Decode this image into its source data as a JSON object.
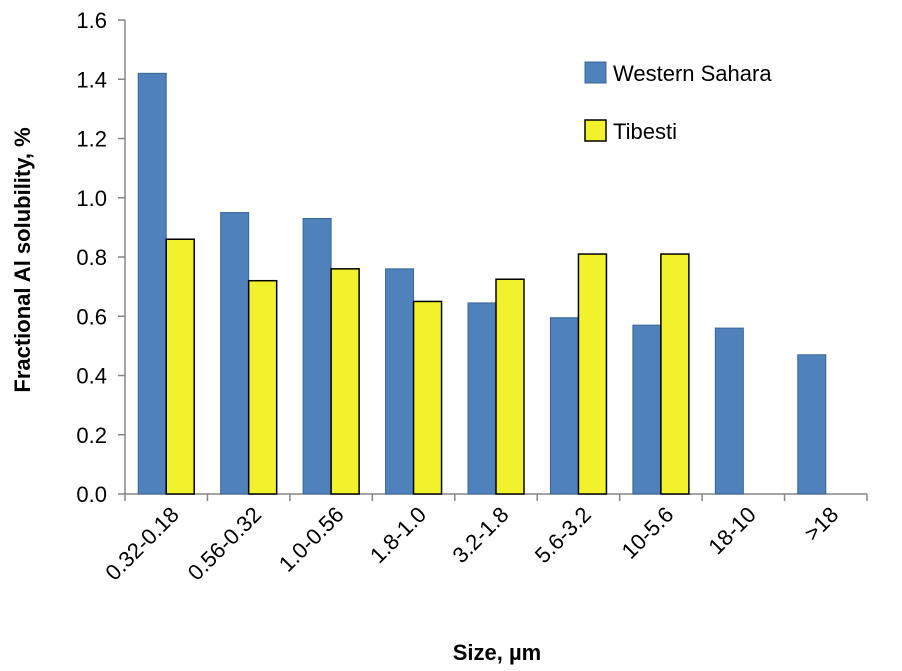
{
  "chart_data": {
    "type": "bar",
    "xlabel": "Size, µm",
    "ylabel": "Fractional Al solubility, %",
    "ylim": [
      0,
      1.6
    ],
    "y_ticks": [
      "0.0",
      "0.2",
      "0.4",
      "0.6",
      "0.8",
      "1.0",
      "1.2",
      "1.4",
      "1.6"
    ],
    "categories": [
      "0.32-0.18",
      "0.56-0.32",
      "1.0-0.56",
      "1.8-1.0",
      "3.2-1.8",
      "5.6-3.2",
      "10-5.6",
      "18-10",
      ">18"
    ],
    "series": [
      {
        "name": "Western Sahara",
        "color": "#4f81bd",
        "stroke": "#3a6596",
        "values": [
          1.42,
          0.95,
          0.93,
          0.76,
          0.645,
          0.595,
          0.57,
          0.56,
          0.47
        ]
      },
      {
        "name": "Tibesti",
        "color": "#f2f22c",
        "stroke": "#000000",
        "values": [
          0.86,
          0.72,
          0.76,
          0.65,
          0.725,
          0.81,
          0.81,
          null,
          null
        ]
      }
    ],
    "legend_position": "top-right",
    "grid": false
  }
}
